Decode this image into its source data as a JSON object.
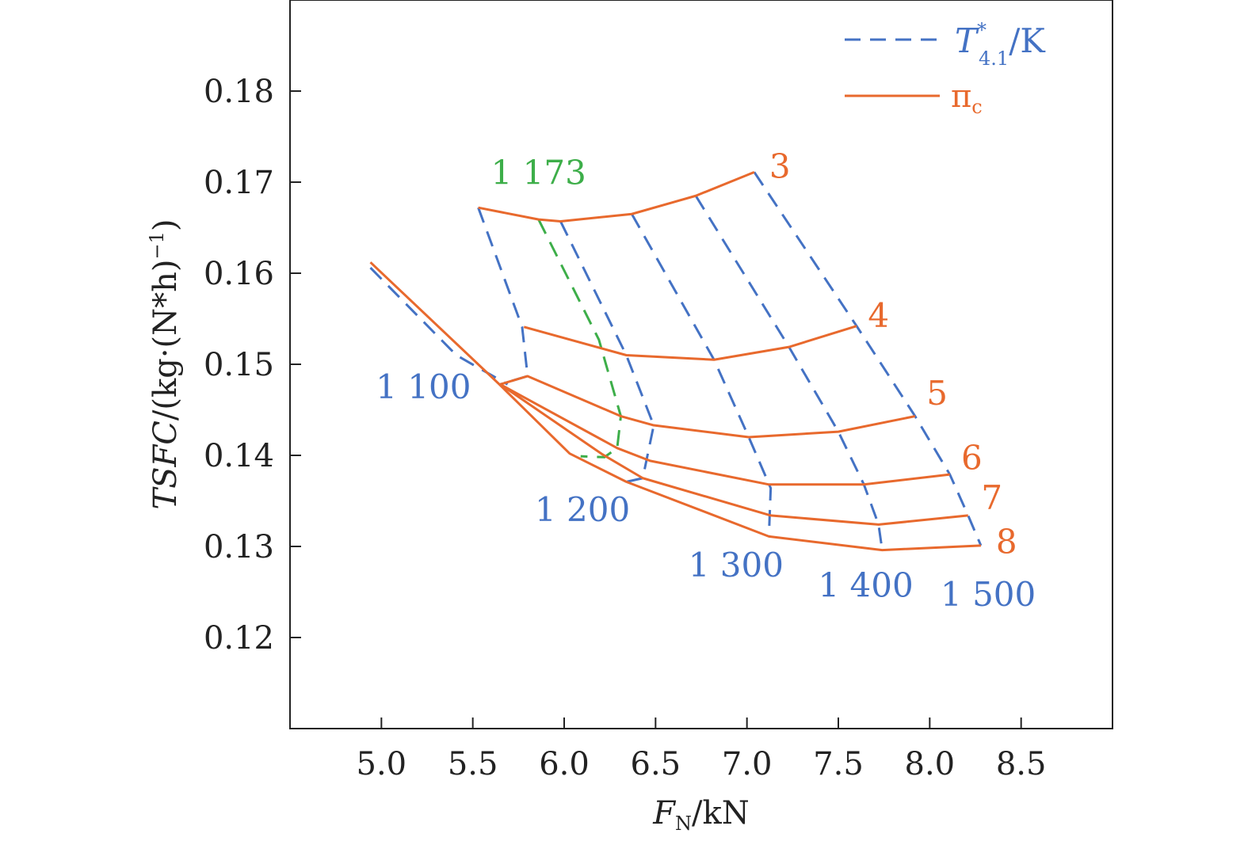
{
  "chart_data": {
    "type": "line",
    "xlabel": "F_N/kN",
    "xlabel_main": "F",
    "xlabel_sub": "N",
    "xlabel_unit": "/kN",
    "ylabel": "TSFC/(kg·(N*h)^-1)",
    "ylabel_main": "TSFC",
    "ylabel_unit": "/(kg·(N*h)",
    "ylabel_sup": "−1",
    "ylabel_close": ")",
    "xlim": [
      4.5,
      9.0
    ],
    "ylim": [
      0.11,
      0.19
    ],
    "xticks": [
      5.0,
      5.5,
      6.0,
      6.5,
      7.0,
      7.5,
      8.0,
      8.5
    ],
    "xtick_labels": [
      "5.0",
      "5.5",
      "6.0",
      "6.5",
      "7.0",
      "7.5",
      "8.0",
      "8.5"
    ],
    "yticks": [
      0.12,
      0.13,
      0.14,
      0.15,
      0.16,
      0.17,
      0.18
    ],
    "ytick_labels": [
      "0.12",
      "0.13",
      "0.14",
      "0.15",
      "0.16",
      "0.17",
      "0.18"
    ],
    "grid": false,
    "legend_position": "top-right",
    "legend": [
      {
        "label_main": "T",
        "label_sup": "*",
        "label_sub": "4.1",
        "label_unit": "/K",
        "style": "dashed",
        "color": "#4472C4"
      },
      {
        "label_main": "π",
        "label_sub": "c",
        "label_unit": "",
        "style": "solid",
        "color": "#E8692D"
      }
    ],
    "colors": {
      "pi": "#E8692D",
      "T": "#4472C4",
      "T_highlight": "#3DAE49",
      "axis": "#222222"
    },
    "pi_series": [
      {
        "name": "3",
        "x": [
          5.53,
          5.86,
          5.98,
          6.37,
          6.72,
          7.04
        ],
        "y": [
          0.1672,
          0.1659,
          0.1657,
          0.1665,
          0.1685,
          0.1711
        ],
        "label_at": [
          7.18,
          0.1717
        ]
      },
      {
        "name": "4",
        "x": [
          5.78,
          6.34,
          6.82,
          7.23,
          7.6
        ],
        "y": [
          0.1541,
          0.151,
          0.1505,
          0.1519,
          0.1542
        ],
        "label_at": [
          7.72,
          0.1553
        ]
      },
      {
        "name": "5",
        "x": [
          5.65,
          5.8,
          6.31,
          6.49,
          7.01,
          7.5,
          7.92
        ],
        "y": [
          0.1478,
          0.1487,
          0.1443,
          0.1433,
          0.142,
          0.1426,
          0.1443
        ],
        "label_at": [
          8.04,
          0.1468
        ]
      },
      {
        "name": "6",
        "x": [
          5.65,
          6.29,
          6.47,
          7.12,
          7.64,
          8.11
        ],
        "y": [
          0.1478,
          0.1408,
          0.1394,
          0.1368,
          0.1368,
          0.1379
        ],
        "label_at": [
          8.23,
          0.1397
        ]
      },
      {
        "name": "7",
        "x": [
          5.65,
          6.21,
          6.43,
          7.13,
          7.72,
          8.21
        ],
        "y": [
          0.1478,
          0.1401,
          0.1375,
          0.1334,
          0.1324,
          0.1334
        ],
        "label_at": [
          8.34,
          0.1353
        ]
      },
      {
        "name": "8",
        "x": [
          4.94,
          5.64,
          6.03,
          6.34,
          7.12,
          7.74,
          8.28
        ],
        "y": [
          0.1612,
          0.1479,
          0.1402,
          0.1371,
          0.1311,
          0.1296,
          0.1301
        ],
        "label_at": [
          8.42,
          0.1305
        ]
      }
    ],
    "T_series": [
      {
        "name": "1 100",
        "x": [
          5.53,
          5.77,
          5.8,
          5.65
        ],
        "y": [
          0.1672,
          0.1541,
          0.1487,
          0.1478
        ],
        "extra_x": [
          4.94,
          5.41,
          5.69
        ],
        "extra_y": [
          0.1606,
          0.151,
          0.1478
        ],
        "label_at": [
          5.23,
          0.1475
        ],
        "highlight": false
      },
      {
        "name": "1 200",
        "x": [
          5.98,
          6.34,
          6.49,
          6.43,
          6.32
        ],
        "y": [
          0.1657,
          0.151,
          0.1433,
          0.1375,
          0.137
        ],
        "label_at": [
          6.1,
          0.134
        ],
        "highlight": false
      },
      {
        "name": "1 300",
        "x": [
          6.37,
          6.82,
          7.01,
          7.13,
          7.12
        ],
        "y": [
          0.1665,
          0.1505,
          0.142,
          0.1364,
          0.1311
        ],
        "label_at": [
          6.94,
          0.1279
        ],
        "highlight": false
      },
      {
        "name": "1 400",
        "x": [
          6.72,
          7.23,
          7.5,
          7.64,
          7.72,
          7.74
        ],
        "y": [
          0.1685,
          0.1519,
          0.1426,
          0.1368,
          0.1324,
          0.1296
        ],
        "label_at": [
          7.65,
          0.1257
        ],
        "highlight": false
      },
      {
        "name": "1 500",
        "x": [
          7.04,
          7.6,
          7.92,
          8.11,
          8.21,
          8.28
        ],
        "y": [
          0.1711,
          0.1542,
          0.1443,
          0.1379,
          0.1334,
          0.1301
        ],
        "label_at": [
          8.32,
          0.1247
        ],
        "highlight": false
      },
      {
        "name": "1 173",
        "x": [
          5.86,
          6.19,
          6.31,
          6.29,
          6.22,
          6.09
        ],
        "y": [
          0.1659,
          0.1527,
          0.1443,
          0.1408,
          0.1398,
          0.1399
        ],
        "label_at": [
          5.86,
          0.171
        ],
        "highlight": true
      }
    ]
  }
}
